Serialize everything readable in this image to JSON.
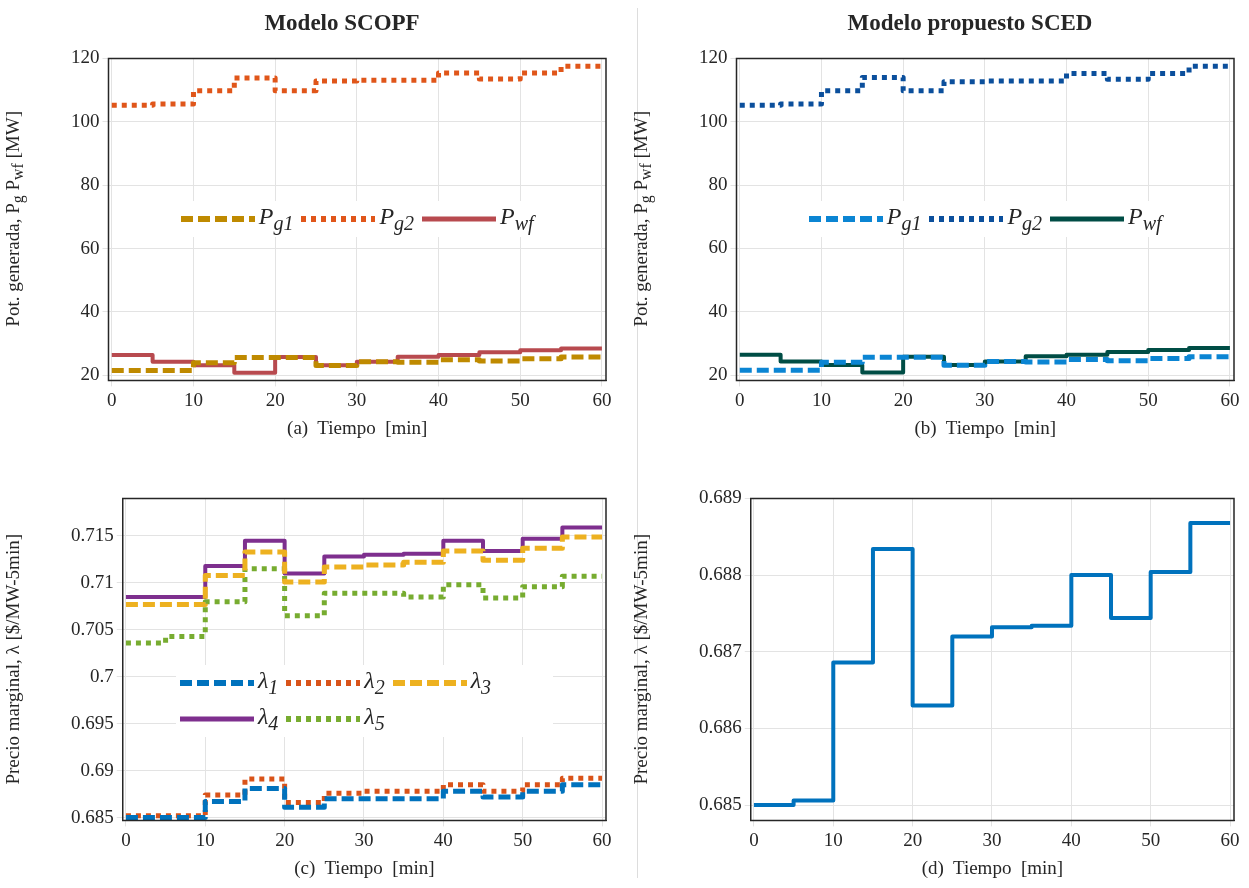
{
  "chart_data": [
    {
      "type": "step",
      "title": "Modelo SCOPF",
      "xlabel": "(a)  Tiempo  [min]",
      "ylabel": "Pot. generada,  P$_{g}$  P$_{wf}$  [MW]",
      "x": [
        0,
        5,
        10,
        15,
        20,
        25,
        30,
        35,
        40,
        45,
        50,
        55,
        60
      ],
      "xlim": [
        -0.4,
        60.5
      ],
      "xticks": [
        0,
        10,
        20,
        30,
        40,
        50,
        60
      ],
      "ylim": [
        18.4,
        120
      ],
      "yticks": [
        20,
        40,
        60,
        80,
        100,
        120
      ],
      "grid": true,
      "legend": "center",
      "series": [
        {
          "name": "P$_{g1}$",
          "color": "#bf8a00",
          "line_style": "dashed",
          "values": [
            21.5,
            21.5,
            24.0,
            25.6,
            25.6,
            23.1,
            24.3,
            24.1,
            24.9,
            24.5,
            25.2,
            25.8,
            25.8
          ]
        },
        {
          "name": "P$_{g2}$",
          "color": "#e0561a",
          "line_style": "dotted",
          "values": [
            105.2,
            105.6,
            109.8,
            113.8,
            109.8,
            112.9,
            113.1,
            113.1,
            115.4,
            113.5,
            115.4,
            117.5,
            117.5
          ]
        },
        {
          "name": "P$_{wf}$",
          "color": "#b84a4f",
          "line_style": "solid",
          "values": [
            26.4,
            24.3,
            23.2,
            20.8,
            25.8,
            23.2,
            24.3,
            25.9,
            26.4,
            27.3,
            27.9,
            28.5,
            28.5
          ]
        }
      ]
    },
    {
      "type": "step",
      "title": "Modelo propuesto SCED",
      "xlabel": "(b)  Tiempo  [min]",
      "ylabel": "Pot. generada,  P$_{g}$  P$_{wf}$  [MW]",
      "x": [
        0,
        5,
        10,
        15,
        20,
        25,
        30,
        35,
        40,
        45,
        50,
        55,
        60
      ],
      "xlim": [
        -0.4,
        60.5
      ],
      "xticks": [
        0,
        10,
        20,
        30,
        40,
        50,
        60
      ],
      "ylim": [
        18.3,
        120
      ],
      "yticks": [
        20,
        40,
        60,
        80,
        100,
        120
      ],
      "grid": true,
      "legend": "center",
      "series": [
        {
          "name": "P$_{g1}$",
          "color": "#0b85d3",
          "line_style": "dashed",
          "values": [
            21.5,
            21.5,
            24.0,
            25.6,
            25.6,
            23.1,
            24.3,
            24.1,
            24.9,
            24.5,
            25.2,
            25.8,
            25.8
          ]
        },
        {
          "name": "P$_{g2}$",
          "color": "#0b4f9c",
          "line_style": "dotted",
          "values": [
            105.2,
            105.6,
            109.8,
            114.0,
            109.8,
            112.6,
            112.9,
            112.9,
            115.2,
            113.4,
            115.2,
            117.5,
            117.5
          ]
        },
        {
          "name": "P$_{wf}$",
          "color": "#004d45",
          "line_style": "solid",
          "values": [
            26.4,
            24.3,
            23.2,
            20.8,
            25.8,
            23.2,
            24.3,
            25.9,
            26.4,
            27.3,
            27.9,
            28.5,
            28.5
          ]
        }
      ]
    },
    {
      "type": "step",
      "xlabel": "(c)  Tiempo  [min]",
      "ylabel": "Precio marginal,  λ  [$/MW-5min]",
      "x": [
        0,
        5,
        10,
        15,
        20,
        25,
        30,
        35,
        40,
        45,
        50,
        55,
        60
      ],
      "xlim": [
        -0.4,
        60.5
      ],
      "xticks": [
        0,
        10,
        20,
        30,
        40,
        50,
        60
      ],
      "ylim": [
        0.6847,
        0.719
      ],
      "yticks": [
        0.685,
        0.69,
        0.695,
        0.7,
        0.705,
        0.71,
        0.715
      ],
      "grid": true,
      "legend": "lower center",
      "series": [
        {
          "name": "λ$_{1}$",
          "color": "#0072bd",
          "line_style": "dashed",
          "values": [
            0.685,
            0.685,
            0.6867,
            0.6881,
            0.6861,
            0.687,
            0.687,
            0.687,
            0.6878,
            0.6872,
            0.6878,
            0.6885,
            0.6885
          ]
        },
        {
          "name": "λ$_{2}$",
          "color": "#d95319",
          "line_style": "dotted",
          "values": [
            0.6852,
            0.6852,
            0.6874,
            0.6891,
            0.6866,
            0.6876,
            0.6878,
            0.6878,
            0.6885,
            0.6878,
            0.6885,
            0.6892,
            0.6892
          ]
        },
        {
          "name": "λ$_{3}$",
          "color": "#edb120",
          "line_style": "dashed",
          "values": [
            0.7077,
            0.7077,
            0.7108,
            0.7133,
            0.7101,
            0.7117,
            0.7119,
            0.7122,
            0.7134,
            0.7124,
            0.7137,
            0.7149,
            0.7149
          ]
        },
        {
          "name": "λ$_{4}$",
          "color": "#7e2f8e",
          "line_style": "solid",
          "values": [
            0.7085,
            0.7085,
            0.7118,
            0.7145,
            0.711,
            0.7128,
            0.713,
            0.7131,
            0.7145,
            0.7134,
            0.7147,
            0.7159,
            0.7159
          ]
        },
        {
          "name": "λ$_{5}$",
          "color": "#77ac30",
          "line_style": "dotted",
          "values": [
            0.7036,
            0.7043,
            0.708,
            0.7115,
            0.7065,
            0.7089,
            0.7089,
            0.7085,
            0.7098,
            0.7084,
            0.7096,
            0.7107,
            0.7107
          ]
        }
      ]
    },
    {
      "type": "step",
      "xlabel": "(d)  Tiempo  [min]",
      "ylabel": "Precio marginal,  λ  [$/MW-5min]",
      "x": [
        0,
        5,
        10,
        15,
        20,
        25,
        30,
        35,
        40,
        45,
        50,
        55,
        60
      ],
      "xlim": [
        -0.4,
        60.5
      ],
      "xticks": [
        0,
        10,
        20,
        30,
        40,
        50,
        60
      ],
      "ylim": [
        0.6848,
        0.689
      ],
      "yticks": [
        0.685,
        0.686,
        0.687,
        0.688,
        0.689
      ],
      "grid": true,
      "color": "#0072bd",
      "line_style": "solid",
      "values": [
        0.685,
        0.68506,
        0.68686,
        0.68834,
        0.6863,
        0.6872,
        0.68732,
        0.68734,
        0.688,
        0.68744,
        0.68804,
        0.68868,
        0.68868
      ]
    }
  ]
}
